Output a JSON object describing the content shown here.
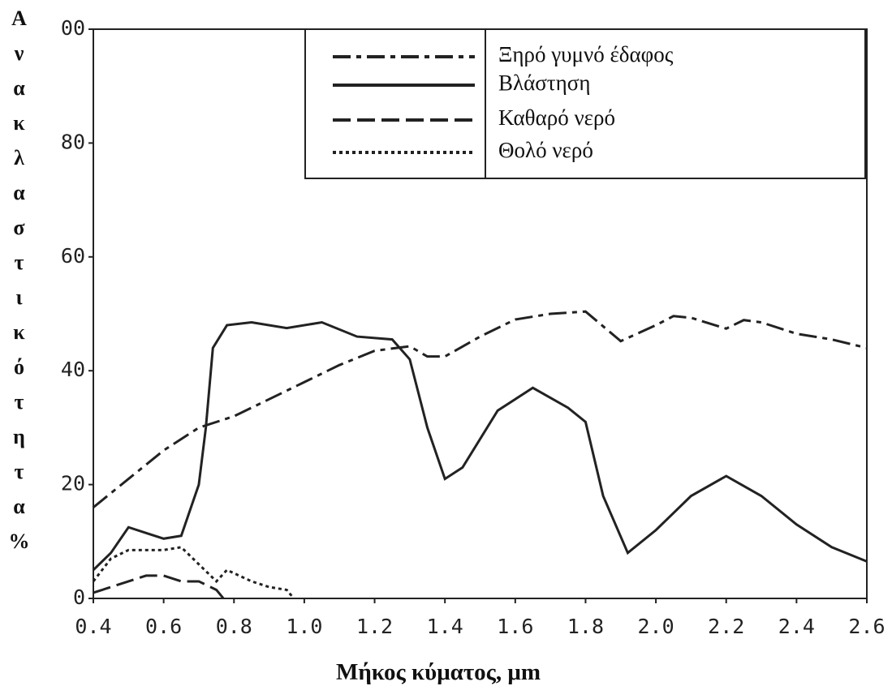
{
  "chart_data": {
    "type": "line",
    "y_label": "Ανακλαστικότητα%",
    "x_label": "Μήκος κύματος, μm",
    "xlim": [
      0.4,
      2.6
    ],
    "xticks": [
      0.4,
      0.6,
      0.8,
      {
        "value": 1,
        "label": "1.0"
      },
      1.2,
      1.4,
      1.6,
      1.8,
      {
        "value": 2,
        "label": "2.0"
      },
      2.2,
      2.4,
      2.6
    ],
    "ylim": [
      0,
      100
    ],
    "yticks": [
      0,
      20,
      40,
      60,
      80,
      {
        "value": 100,
        "label": "00"
      }
    ],
    "series": [
      {
        "name": "Ξηρό γυμνό έδαφος",
        "color": "#222",
        "style": "dashdot",
        "x": [
          0.4,
          0.5,
          0.6,
          0.7,
          0.8,
          0.9,
          1.0,
          1.1,
          1.2,
          1.3,
          1.35,
          1.4,
          1.5,
          1.6,
          1.7,
          1.8,
          1.9,
          2.0,
          2.05,
          2.1,
          2.2,
          2.25,
          2.3,
          2.4,
          2.5,
          2.6
        ],
        "values": [
          16,
          21,
          26,
          30,
          32,
          35,
          38,
          41,
          43.5,
          44.3,
          42.5,
          42.5,
          46,
          49,
          50,
          50.4,
          45.2,
          48,
          49.6,
          49.3,
          47.4,
          48.9,
          48.5,
          46.5,
          45.5,
          44
        ]
      },
      {
        "name": "Βλάστηση",
        "color": "#222",
        "style": "solid",
        "x": [
          0.4,
          0.45,
          0.5,
          0.55,
          0.6,
          0.65,
          0.7,
          0.72,
          0.74,
          0.78,
          0.85,
          0.95,
          1.05,
          1.15,
          1.25,
          1.3,
          1.35,
          1.4,
          1.45,
          1.55,
          1.65,
          1.75,
          1.8,
          1.85,
          1.92,
          2.0,
          2.1,
          2.2,
          2.3,
          2.4,
          2.5,
          2.6
        ],
        "values": [
          5,
          8,
          12.5,
          11.5,
          10.5,
          11,
          20,
          30,
          44,
          48,
          48.5,
          47.5,
          48.5,
          46,
          45.5,
          42,
          30,
          21,
          23,
          33,
          37,
          33.5,
          31,
          18,
          8,
          12,
          18,
          21.5,
          18,
          13,
          9,
          6.5
        ]
      },
      {
        "name": "Καθαρό νερό",
        "color": "#222",
        "style": "dashed",
        "x": [
          0.4,
          0.5,
          0.55,
          0.6,
          0.65,
          0.7,
          0.75,
          0.77
        ],
        "values": [
          1,
          3,
          4,
          4,
          3,
          3,
          1.5,
          0
        ]
      },
      {
        "name": "Θολό νερό",
        "color": "#222",
        "style": "dotted",
        "x": [
          0.4,
          0.45,
          0.5,
          0.6,
          0.65,
          0.7,
          0.75,
          0.78,
          0.85,
          0.9,
          0.95,
          0.97
        ],
        "values": [
          3,
          7,
          8.5,
          8.5,
          9,
          6,
          3,
          5,
          3,
          2,
          1.5,
          0
        ]
      }
    ]
  }
}
